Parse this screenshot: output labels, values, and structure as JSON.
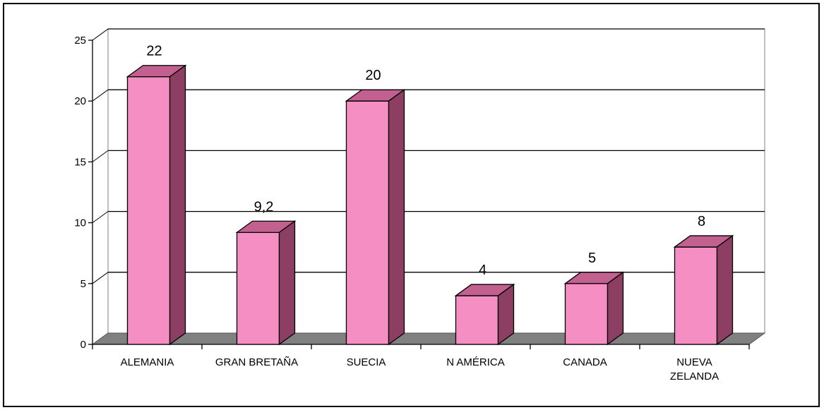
{
  "chart_data": {
    "type": "bar",
    "categories": [
      [
        "ALEMANIA"
      ],
      [
        "GRAN BRETAÑA"
      ],
      [
        "SUECIA"
      ],
      [
        "N AMÉRICA"
      ],
      [
        "CANADA"
      ],
      [
        "NUEVA",
        "ZELANDA"
      ]
    ],
    "values": [
      22,
      9.2,
      20,
      4,
      5,
      8
    ],
    "data_labels": [
      "22",
      "9,2",
      "20",
      "4",
      "5",
      "8"
    ],
    "title": "",
    "xlabel": "",
    "ylabel": "",
    "ylim": [
      0,
      25
    ],
    "yticks": [
      0,
      5,
      10,
      15,
      20,
      25
    ],
    "grid": true,
    "style": "3d",
    "colors": {
      "bar_front": "#f58fc3",
      "bar_top": "#c2608f",
      "bar_side": "#8c3e63",
      "floor": "#808080",
      "wall": "#ffffff",
      "gridline": "#000000"
    }
  }
}
